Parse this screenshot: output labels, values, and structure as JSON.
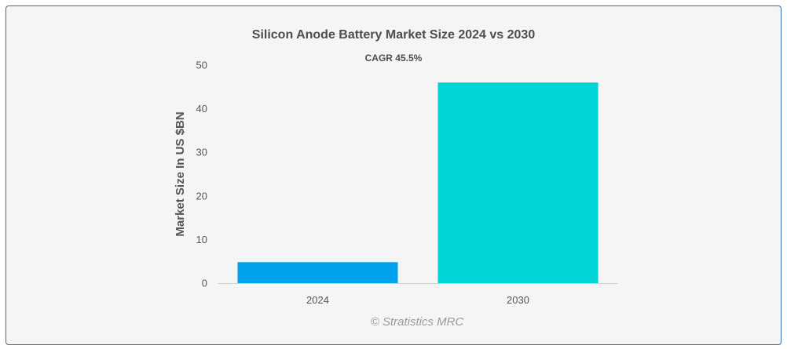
{
  "chart_data": {
    "type": "bar",
    "title": "Silicon Anode Battery Market Size 2024 vs 2030",
    "subtitle": "CAGR 45.5%",
    "xlabel": "",
    "ylabel": "Market Size In US $BN",
    "categories": [
      "2024",
      "2030"
    ],
    "values": [
      4.8,
      46.0
    ],
    "colors": [
      "#00a2ec",
      "#00d4d4"
    ],
    "ylim": [
      0,
      50
    ],
    "yticks": [
      0,
      10,
      20,
      30,
      40,
      50
    ],
    "grid": false,
    "legend": "none"
  },
  "credit": "© Stratistics MRC"
}
